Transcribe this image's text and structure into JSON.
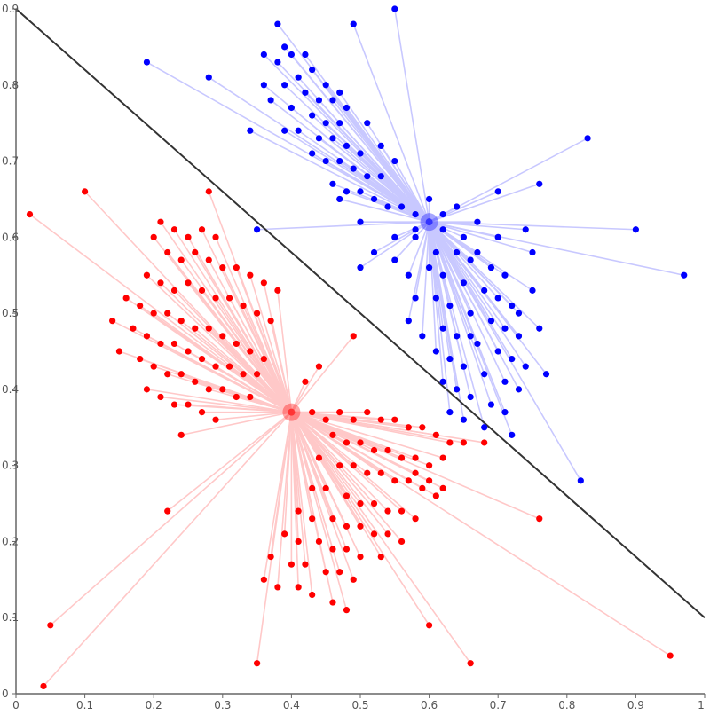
{
  "chart_data": {
    "type": "scatter",
    "title": "",
    "xlabel": "",
    "ylabel": "",
    "xlim": [
      0,
      1
    ],
    "ylim": [
      0,
      0.9
    ],
    "x_ticks": [
      "0",
      "0.1",
      "0.2",
      "0.3",
      "0.4",
      "0.5",
      "0.6",
      "0.7",
      "0.8",
      "0.9",
      "1"
    ],
    "y_ticks": [
      "0",
      "0.1",
      "0.2",
      "0.3",
      "0.4",
      "0.5",
      "0.6",
      "0.7",
      "0.8",
      "0.9"
    ],
    "grid": false,
    "boundary_line": {
      "x": [
        0,
        1
      ],
      "y": [
        0.9,
        0.1
      ],
      "color": "#333333"
    },
    "series": [
      {
        "color": "#0000ff",
        "line_color": "#c8c8ff",
        "centroid": [
          0.6,
          0.62
        ],
        "points": [
          [
            0.55,
            0.9
          ],
          [
            0.49,
            0.88
          ],
          [
            0.38,
            0.88
          ],
          [
            0.19,
            0.83
          ],
          [
            0.28,
            0.81
          ],
          [
            0.39,
            0.85
          ],
          [
            0.4,
            0.84
          ],
          [
            0.42,
            0.84
          ],
          [
            0.36,
            0.84
          ],
          [
            0.38,
            0.83
          ],
          [
            0.41,
            0.81
          ],
          [
            0.43,
            0.82
          ],
          [
            0.45,
            0.8
          ],
          [
            0.47,
            0.79
          ],
          [
            0.36,
            0.8
          ],
          [
            0.39,
            0.8
          ],
          [
            0.42,
            0.79
          ],
          [
            0.44,
            0.78
          ],
          [
            0.46,
            0.78
          ],
          [
            0.48,
            0.77
          ],
          [
            0.37,
            0.78
          ],
          [
            0.4,
            0.77
          ],
          [
            0.43,
            0.76
          ],
          [
            0.45,
            0.75
          ],
          [
            0.47,
            0.75
          ],
          [
            0.39,
            0.74
          ],
          [
            0.41,
            0.74
          ],
          [
            0.44,
            0.73
          ],
          [
            0.46,
            0.73
          ],
          [
            0.48,
            0.72
          ],
          [
            0.5,
            0.71
          ],
          [
            0.43,
            0.71
          ],
          [
            0.45,
            0.7
          ],
          [
            0.47,
            0.7
          ],
          [
            0.49,
            0.69
          ],
          [
            0.51,
            0.68
          ],
          [
            0.53,
            0.68
          ],
          [
            0.46,
            0.67
          ],
          [
            0.48,
            0.66
          ],
          [
            0.5,
            0.66
          ],
          [
            0.52,
            0.65
          ],
          [
            0.54,
            0.64
          ],
          [
            0.56,
            0.64
          ],
          [
            0.58,
            0.63
          ],
          [
            0.6,
            0.65
          ],
          [
            0.62,
            0.63
          ],
          [
            0.64,
            0.64
          ],
          [
            0.58,
            0.61
          ],
          [
            0.62,
            0.61
          ],
          [
            0.65,
            0.6
          ],
          [
            0.67,
            0.62
          ],
          [
            0.7,
            0.66
          ],
          [
            0.76,
            0.67
          ],
          [
            0.83,
            0.73
          ],
          [
            0.9,
            0.61
          ],
          [
            0.97,
            0.55
          ],
          [
            0.35,
            0.61
          ],
          [
            0.55,
            0.6
          ],
          [
            0.58,
            0.6
          ],
          [
            0.61,
            0.58
          ],
          [
            0.64,
            0.58
          ],
          [
            0.66,
            0.57
          ],
          [
            0.69,
            0.56
          ],
          [
            0.71,
            0.55
          ],
          [
            0.75,
            0.58
          ],
          [
            0.6,
            0.56
          ],
          [
            0.62,
            0.55
          ],
          [
            0.65,
            0.54
          ],
          [
            0.68,
            0.53
          ],
          [
            0.7,
            0.52
          ],
          [
            0.72,
            0.51
          ],
          [
            0.75,
            0.53
          ],
          [
            0.61,
            0.52
          ],
          [
            0.63,
            0.51
          ],
          [
            0.66,
            0.5
          ],
          [
            0.69,
            0.49
          ],
          [
            0.71,
            0.48
          ],
          [
            0.73,
            0.47
          ],
          [
            0.76,
            0.48
          ],
          [
            0.62,
            0.48
          ],
          [
            0.64,
            0.47
          ],
          [
            0.67,
            0.46
          ],
          [
            0.7,
            0.45
          ],
          [
            0.72,
            0.44
          ],
          [
            0.74,
            0.43
          ],
          [
            0.61,
            0.45
          ],
          [
            0.63,
            0.44
          ],
          [
            0.65,
            0.43
          ],
          [
            0.68,
            0.42
          ],
          [
            0.71,
            0.41
          ],
          [
            0.73,
            0.4
          ],
          [
            0.62,
            0.41
          ],
          [
            0.64,
            0.4
          ],
          [
            0.66,
            0.39
          ],
          [
            0.69,
            0.38
          ],
          [
            0.71,
            0.37
          ],
          [
            0.65,
            0.36
          ],
          [
            0.68,
            0.35
          ],
          [
            0.72,
            0.34
          ],
          [
            0.82,
            0.28
          ],
          [
            0.5,
            0.56
          ],
          [
            0.52,
            0.58
          ],
          [
            0.55,
            0.57
          ],
          [
            0.57,
            0.55
          ],
          [
            0.5,
            0.62
          ],
          [
            0.47,
            0.65
          ],
          [
            0.53,
            0.72
          ],
          [
            0.55,
            0.7
          ],
          [
            0.51,
            0.75
          ],
          [
            0.34,
            0.74
          ],
          [
            0.57,
            0.49
          ],
          [
            0.59,
            0.47
          ],
          [
            0.58,
            0.52
          ],
          [
            0.67,
            0.58
          ],
          [
            0.7,
            0.6
          ],
          [
            0.74,
            0.61
          ],
          [
            0.73,
            0.5
          ],
          [
            0.66,
            0.47
          ],
          [
            0.77,
            0.42
          ],
          [
            0.63,
            0.37
          ]
        ]
      },
      {
        "color": "#ff0000",
        "line_color": "#ffc8c8",
        "centroid": [
          0.4,
          0.37
        ],
        "points": [
          [
            0.02,
            0.63
          ],
          [
            0.1,
            0.66
          ],
          [
            0.28,
            0.66
          ],
          [
            0.21,
            0.62
          ],
          [
            0.23,
            0.61
          ],
          [
            0.25,
            0.6
          ],
          [
            0.27,
            0.61
          ],
          [
            0.29,
            0.6
          ],
          [
            0.2,
            0.6
          ],
          [
            0.22,
            0.58
          ],
          [
            0.24,
            0.57
          ],
          [
            0.26,
            0.58
          ],
          [
            0.28,
            0.57
          ],
          [
            0.3,
            0.56
          ],
          [
            0.32,
            0.56
          ],
          [
            0.34,
            0.55
          ],
          [
            0.36,
            0.54
          ],
          [
            0.38,
            0.53
          ],
          [
            0.19,
            0.55
          ],
          [
            0.21,
            0.54
          ],
          [
            0.23,
            0.53
          ],
          [
            0.25,
            0.54
          ],
          [
            0.27,
            0.53
          ],
          [
            0.29,
            0.52
          ],
          [
            0.31,
            0.52
          ],
          [
            0.33,
            0.51
          ],
          [
            0.35,
            0.5
          ],
          [
            0.37,
            0.49
          ],
          [
            0.16,
            0.52
          ],
          [
            0.18,
            0.51
          ],
          [
            0.2,
            0.5
          ],
          [
            0.22,
            0.5
          ],
          [
            0.24,
            0.49
          ],
          [
            0.26,
            0.48
          ],
          [
            0.28,
            0.48
          ],
          [
            0.3,
            0.47
          ],
          [
            0.32,
            0.46
          ],
          [
            0.34,
            0.45
          ],
          [
            0.36,
            0.44
          ],
          [
            0.14,
            0.49
          ],
          [
            0.17,
            0.48
          ],
          [
            0.19,
            0.47
          ],
          [
            0.21,
            0.46
          ],
          [
            0.23,
            0.46
          ],
          [
            0.25,
            0.45
          ],
          [
            0.27,
            0.44
          ],
          [
            0.29,
            0.43
          ],
          [
            0.31,
            0.43
          ],
          [
            0.33,
            0.42
          ],
          [
            0.35,
            0.42
          ],
          [
            0.15,
            0.45
          ],
          [
            0.18,
            0.44
          ],
          [
            0.2,
            0.43
          ],
          [
            0.22,
            0.42
          ],
          [
            0.24,
            0.42
          ],
          [
            0.26,
            0.41
          ],
          [
            0.28,
            0.4
          ],
          [
            0.3,
            0.4
          ],
          [
            0.32,
            0.39
          ],
          [
            0.34,
            0.39
          ],
          [
            0.19,
            0.4
          ],
          [
            0.21,
            0.39
          ],
          [
            0.23,
            0.38
          ],
          [
            0.25,
            0.38
          ],
          [
            0.27,
            0.37
          ],
          [
            0.29,
            0.36
          ],
          [
            0.24,
            0.34
          ],
          [
            0.22,
            0.24
          ],
          [
            0.05,
            0.09
          ],
          [
            0.04,
            0.01
          ],
          [
            0.35,
            0.04
          ],
          [
            0.49,
            0.47
          ],
          [
            0.44,
            0.43
          ],
          [
            0.42,
            0.41
          ],
          [
            0.43,
            0.37
          ],
          [
            0.45,
            0.36
          ],
          [
            0.47,
            0.37
          ],
          [
            0.49,
            0.36
          ],
          [
            0.51,
            0.37
          ],
          [
            0.53,
            0.36
          ],
          [
            0.55,
            0.36
          ],
          [
            0.57,
            0.35
          ],
          [
            0.59,
            0.35
          ],
          [
            0.61,
            0.34
          ],
          [
            0.63,
            0.33
          ],
          [
            0.65,
            0.33
          ],
          [
            0.68,
            0.33
          ],
          [
            0.46,
            0.34
          ],
          [
            0.48,
            0.33
          ],
          [
            0.5,
            0.33
          ],
          [
            0.52,
            0.32
          ],
          [
            0.54,
            0.32
          ],
          [
            0.56,
            0.31
          ],
          [
            0.58,
            0.31
          ],
          [
            0.6,
            0.3
          ],
          [
            0.62,
            0.31
          ],
          [
            0.44,
            0.31
          ],
          [
            0.47,
            0.3
          ],
          [
            0.49,
            0.3
          ],
          [
            0.51,
            0.29
          ],
          [
            0.53,
            0.29
          ],
          [
            0.55,
            0.28
          ],
          [
            0.57,
            0.28
          ],
          [
            0.59,
            0.27
          ],
          [
            0.61,
            0.26
          ],
          [
            0.43,
            0.27
          ],
          [
            0.45,
            0.27
          ],
          [
            0.48,
            0.26
          ],
          [
            0.5,
            0.25
          ],
          [
            0.52,
            0.25
          ],
          [
            0.54,
            0.24
          ],
          [
            0.56,
            0.24
          ],
          [
            0.58,
            0.23
          ],
          [
            0.41,
            0.24
          ],
          [
            0.43,
            0.23
          ],
          [
            0.46,
            0.23
          ],
          [
            0.48,
            0.22
          ],
          [
            0.5,
            0.22
          ],
          [
            0.52,
            0.21
          ],
          [
            0.54,
            0.21
          ],
          [
            0.56,
            0.2
          ],
          [
            0.39,
            0.21
          ],
          [
            0.41,
            0.2
          ],
          [
            0.44,
            0.2
          ],
          [
            0.46,
            0.19
          ],
          [
            0.48,
            0.19
          ],
          [
            0.5,
            0.18
          ],
          [
            0.53,
            0.18
          ],
          [
            0.37,
            0.18
          ],
          [
            0.4,
            0.17
          ],
          [
            0.42,
            0.17
          ],
          [
            0.45,
            0.16
          ],
          [
            0.47,
            0.16
          ],
          [
            0.49,
            0.15
          ],
          [
            0.36,
            0.15
          ],
          [
            0.38,
            0.14
          ],
          [
            0.41,
            0.14
          ],
          [
            0.43,
            0.13
          ],
          [
            0.46,
            0.12
          ],
          [
            0.48,
            0.11
          ],
          [
            0.76,
            0.23
          ],
          [
            0.95,
            0.05
          ],
          [
            0.66,
            0.04
          ],
          [
            0.6,
            0.09
          ],
          [
            0.58,
            0.29
          ],
          [
            0.6,
            0.28
          ],
          [
            0.62,
            0.27
          ]
        ]
      }
    ]
  }
}
